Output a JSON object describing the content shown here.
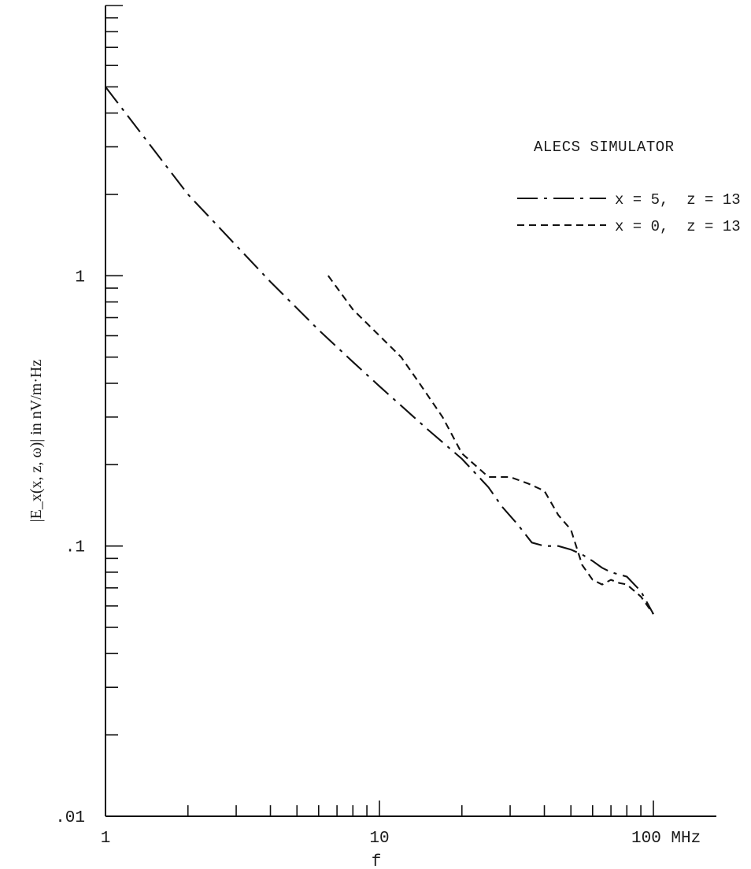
{
  "chart_data": {
    "type": "line",
    "title": "ALECS SIMULATOR",
    "xlabel": "f",
    "ylabel": "|E_x(x, z, ω)|   in nV/m·Hz",
    "x_unit": "MHz",
    "xscale": "log",
    "yscale": "log",
    "xlim": [
      1,
      100
    ],
    "ylim": [
      0.01,
      10
    ],
    "x_tick_labels": [
      "1",
      "10",
      "100 MHz"
    ],
    "y_tick_labels": [
      ".01",
      ".1",
      "1"
    ],
    "legend_placement": "top-right",
    "grid": false,
    "series": [
      {
        "name": "x = 5,  z = 13",
        "style": "dash-dot",
        "x": [
          1,
          2,
          4,
          6,
          8,
          10,
          15,
          20,
          25,
          28,
          32,
          36,
          40,
          45,
          50,
          55,
          60,
          65,
          70,
          80,
          90,
          100
        ],
        "y": [
          5.0,
          2.0,
          0.95,
          0.63,
          0.48,
          0.39,
          0.27,
          0.21,
          0.165,
          0.14,
          0.12,
          0.103,
          0.1,
          0.1,
          0.097,
          0.093,
          0.088,
          0.083,
          0.08,
          0.077,
          0.068,
          0.056
        ]
      },
      {
        "name": "x = 0,  z = 13",
        "style": "dashed",
        "x": [
          6.5,
          8,
          10,
          12,
          14,
          17,
          20,
          25,
          30,
          35,
          40,
          45,
          50,
          55,
          60,
          65,
          70,
          75,
          80,
          90,
          100
        ],
        "y": [
          1.0,
          0.75,
          0.6,
          0.5,
          0.4,
          0.3,
          0.22,
          0.18,
          0.18,
          0.17,
          0.16,
          0.13,
          0.115,
          0.085,
          0.075,
          0.072,
          0.075,
          0.073,
          0.072,
          0.065,
          0.056
        ]
      }
    ]
  }
}
